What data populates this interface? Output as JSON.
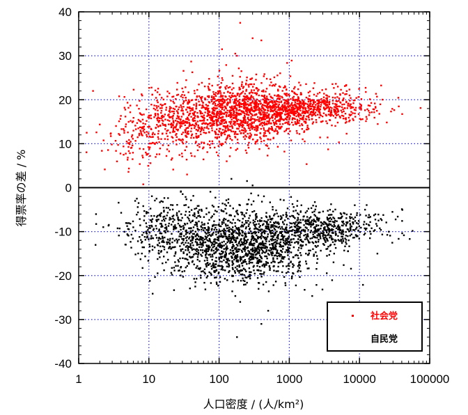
{
  "chart_data": {
    "type": "scatter",
    "title": "",
    "xlabel": "人口密度 / (人/km²)",
    "ylabel": "得票率の差 / %",
    "xscale": "log",
    "xlim": [
      1,
      100000
    ],
    "ylim": [
      -40,
      40
    ],
    "x_ticks": [
      "1",
      "10",
      "100",
      "1000",
      "10000",
      "100000"
    ],
    "y_ticks": [
      "-40",
      "-30",
      "-20",
      "-10",
      "0",
      "10",
      "20",
      "30",
      "40"
    ],
    "grid": true,
    "zero_line": true,
    "legend_position": "bottom-right",
    "series": [
      {
        "name": "社会党",
        "color": "#ff0000",
        "clusters": [
          {
            "x_center": 200,
            "y_center": 17,
            "x_spread_log10": 0.55,
            "y_spread": 3.5,
            "n": 1400
          },
          {
            "x_center": 2000,
            "y_center": 18,
            "x_spread_log10": 0.5,
            "y_spread": 1.8,
            "n": 600
          },
          {
            "x_center": 20,
            "y_center": 14,
            "x_spread_log10": 0.35,
            "y_spread": 3.5,
            "n": 300
          },
          {
            "x_center": 5,
            "y_center": 10,
            "x_spread_log10": 0.2,
            "y_spread": 3.5,
            "n": 60
          }
        ],
        "points": [
          {
            "x": 1.6,
            "y": 22
          },
          {
            "x": 1.3,
            "y": 12.5
          },
          {
            "x": 200,
            "y": 37.5
          },
          {
            "x": 300,
            "y": 34
          },
          {
            "x": 400,
            "y": 33.5
          },
          {
            "x": 110,
            "y": 31.5
          },
          {
            "x": 180,
            "y": 30
          },
          {
            "x": 35,
            "y": 3
          },
          {
            "x": 170,
            "y": 30.5
          }
        ]
      },
      {
        "name": "自民党",
        "color": "#000000",
        "clusters": [
          {
            "x_center": 200,
            "y_center": -13,
            "x_spread_log10": 0.55,
            "y_spread": 4.0,
            "n": 1500
          },
          {
            "x_center": 3000,
            "y_center": -9,
            "x_spread_log10": 0.45,
            "y_spread": 2.0,
            "n": 500
          },
          {
            "x_center": 15,
            "y_center": -9,
            "x_spread_log10": 0.35,
            "y_spread": 3.5,
            "n": 250
          }
        ],
        "points": [
          {
            "x": 180,
            "y": -34
          },
          {
            "x": 400,
            "y": -31
          },
          {
            "x": 200,
            "y": -26
          },
          {
            "x": 500,
            "y": -28
          },
          {
            "x": 150,
            "y": 2
          },
          {
            "x": 250,
            "y": 1.5
          },
          {
            "x": 300,
            "y": 0.5
          },
          {
            "x": 12000,
            "y": -5
          },
          {
            "x": 18000,
            "y": -15
          }
        ]
      }
    ]
  }
}
